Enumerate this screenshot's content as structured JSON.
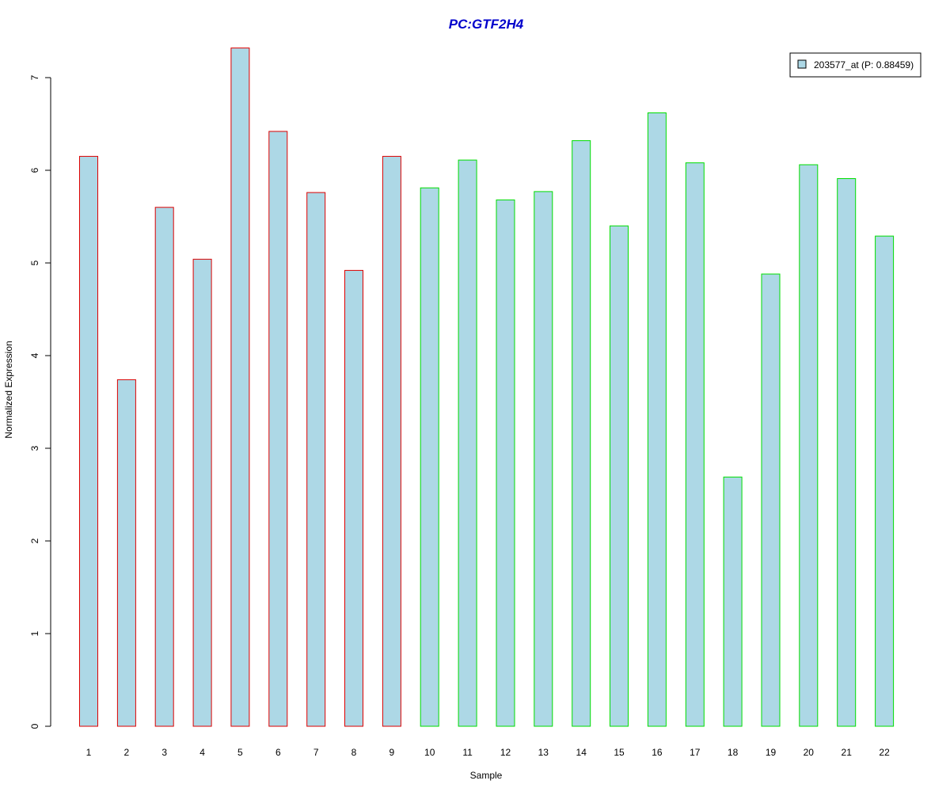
{
  "chart_data": {
    "type": "bar",
    "title": "PC:GTF2H4",
    "xlabel": "Sample",
    "ylabel": "Normalized Expression",
    "ylim": [
      0,
      7
    ],
    "y_ticks": [
      0,
      1,
      2,
      3,
      4,
      5,
      6,
      7
    ],
    "categories": [
      "1",
      "2",
      "3",
      "4",
      "5",
      "6",
      "7",
      "8",
      "9",
      "10",
      "11",
      "12",
      "13",
      "14",
      "15",
      "16",
      "17",
      "18",
      "19",
      "20",
      "21",
      "22"
    ],
    "series": [
      {
        "name": "203577_at (P: 0.88459)",
        "values": [
          6.15,
          3.74,
          5.6,
          5.04,
          7.32,
          6.42,
          5.76,
          4.92,
          6.15,
          5.81,
          6.11,
          5.68,
          5.77,
          6.32,
          5.4,
          6.62,
          6.08,
          2.69,
          4.88,
          6.06,
          5.91,
          5.29
        ]
      }
    ],
    "bar_fill": "#add8e6",
    "group_border_colors": [
      "#dd0000",
      "#dd0000",
      "#dd0000",
      "#dd0000",
      "#dd0000",
      "#dd0000",
      "#dd0000",
      "#dd0000",
      "#dd0000",
      "#00dd00",
      "#00dd00",
      "#00dd00",
      "#00dd00",
      "#00dd00",
      "#00dd00",
      "#00dd00",
      "#00dd00",
      "#00dd00",
      "#00dd00",
      "#00dd00",
      "#00dd00",
      "#00dd00"
    ],
    "title_color": "#0000cc",
    "legend_position": "top-right",
    "grid": false
  }
}
